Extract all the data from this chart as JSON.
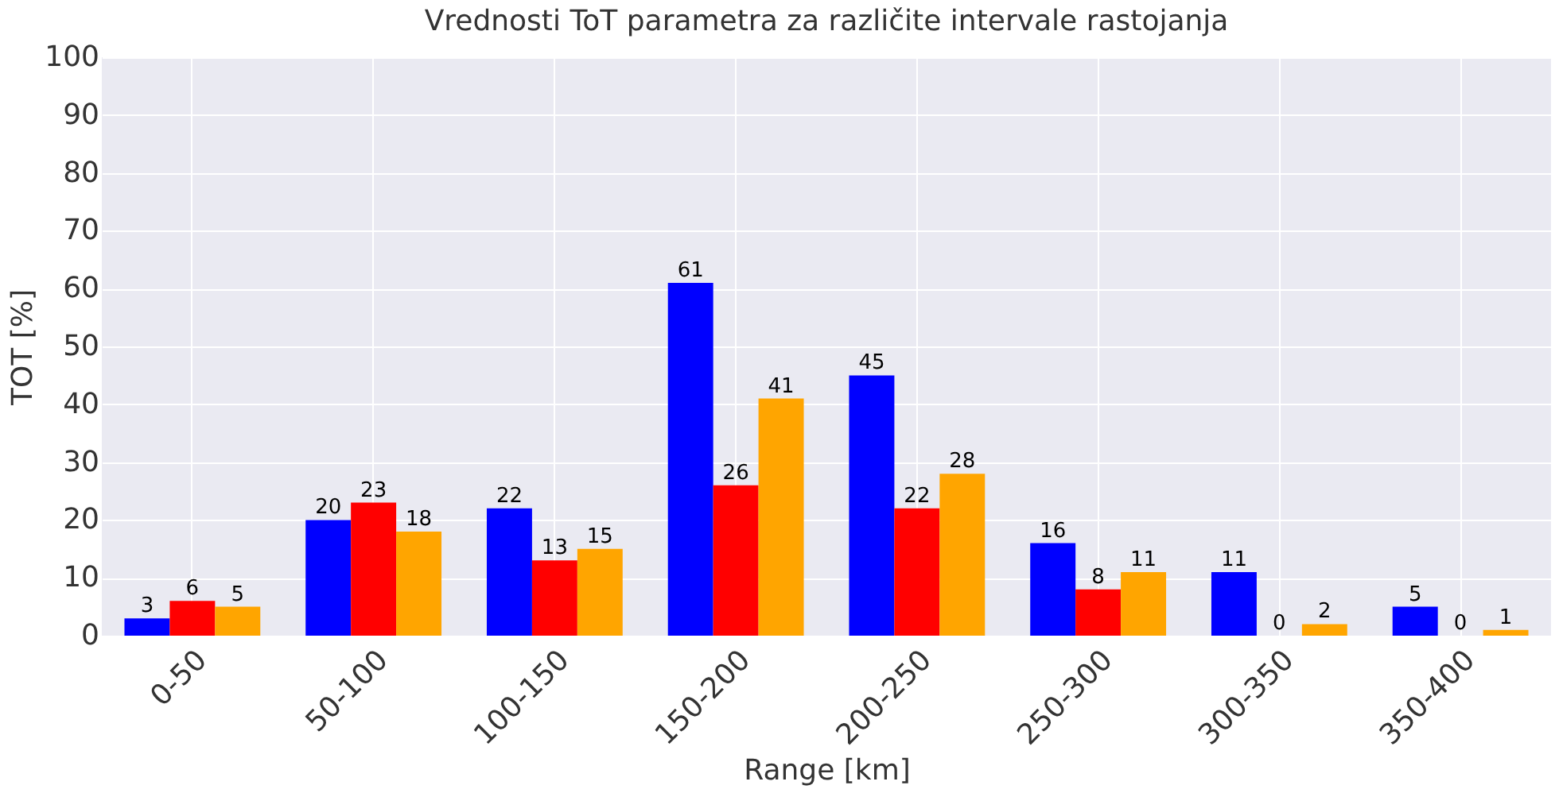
{
  "chart_data": {
    "type": "bar",
    "title": "Vrednosti ToT parametra za različite intervale rastojanja",
    "xlabel": "Range [km]",
    "ylabel": "TOT [%]",
    "categories": [
      "0-50",
      "50-100",
      "100-150",
      "150-200",
      "200-250",
      "250-300",
      "300-350",
      "350-400"
    ],
    "series": [
      {
        "color": "#0000ff",
        "values": [
          3,
          20,
          22,
          61,
          45,
          16,
          11,
          5
        ]
      },
      {
        "color": "#ff0000",
        "values": [
          6,
          23,
          13,
          26,
          22,
          8,
          0,
          0
        ]
      },
      {
        "color": "#ffa500",
        "values": [
          5,
          18,
          15,
          41,
          28,
          11,
          2,
          1
        ]
      }
    ],
    "ylim": [
      0,
      100
    ],
    "yticks": [
      0,
      10,
      20,
      30,
      40,
      50,
      60,
      70,
      80,
      90,
      100
    ],
    "grid": true,
    "data_labels": true
  }
}
